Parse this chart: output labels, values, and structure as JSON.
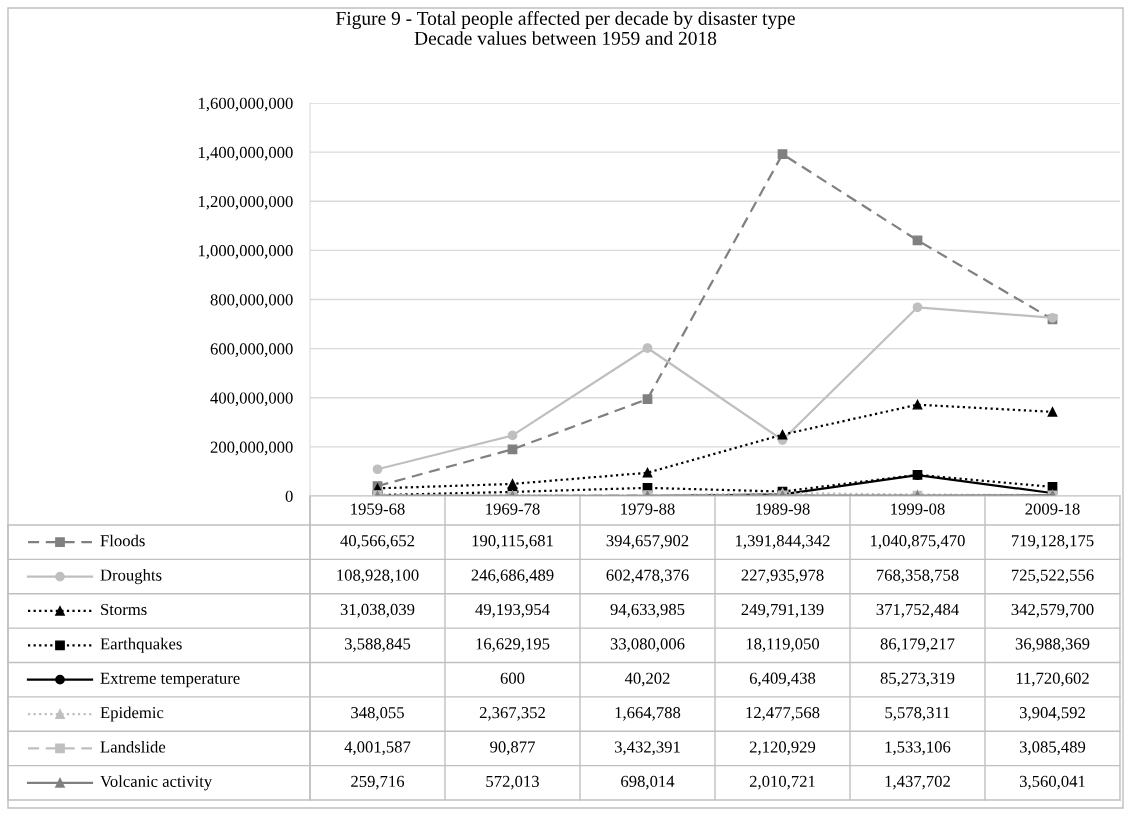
{
  "chart_data": {
    "type": "line",
    "title": "Figure 9 - Total people affected per decade by disaster type",
    "subtitle": "Decade values between 1959 and 2018",
    "categories": [
      "1959-68",
      "1969-78",
      "1979-88",
      "1989-98",
      "1999-08",
      "2009-18"
    ],
    "series": [
      {
        "name": "Floods",
        "color": "#808080",
        "marker": "square",
        "line_style": "dashed",
        "values": [
          40566652,
          190115681,
          394657902,
          1391844342,
          1040875470,
          719128175
        ],
        "value_labels": [
          "40,566,652",
          "190,115,681",
          "394,657,902",
          "1,391,844,342",
          "1,040,875,470",
          "719,128,175"
        ]
      },
      {
        "name": "Droughts",
        "color": "#bfbfbf",
        "marker": "circle",
        "line_style": "solid",
        "values": [
          108928100,
          246686489,
          602478376,
          227935978,
          768358758,
          725522556
        ],
        "value_labels": [
          "108,928,100",
          "246,686,489",
          "602,478,376",
          "227,935,978",
          "768,358,758",
          "725,522,556"
        ]
      },
      {
        "name": "Storms",
        "color": "#000000",
        "marker": "triangle",
        "line_style": "dotted",
        "values": [
          31038039,
          49193954,
          94633985,
          249791139,
          371752484,
          342579700
        ],
        "value_labels": [
          "31,038,039",
          "49,193,954",
          "94,633,985",
          "249,791,139",
          "371,752,484",
          "342,579,700"
        ]
      },
      {
        "name": "Earthquakes",
        "color": "#000000",
        "marker": "square",
        "line_style": "dotted",
        "values": [
          3588845,
          16629195,
          33080006,
          18119050,
          86179217,
          36988369
        ],
        "value_labels": [
          "3,588,845",
          "16,629,195",
          "33,080,006",
          "18,119,050",
          "86,179,217",
          "36,988,369"
        ]
      },
      {
        "name": "Extreme temperature",
        "color": "#000000",
        "marker": "circle",
        "line_style": "solid",
        "values": [
          null,
          600,
          40202,
          6409438,
          85273319,
          11720602
        ],
        "value_labels": [
          null,
          "600",
          "40,202",
          "6,409,438",
          "85,273,319",
          "11,720,602"
        ]
      },
      {
        "name": "Epidemic",
        "color": "#bfbfbf",
        "marker": "triangle",
        "line_style": "dotted",
        "values": [
          348055,
          2367352,
          1664788,
          12477568,
          5578311,
          3904592
        ],
        "value_labels": [
          "348,055",
          "2,367,352",
          "1,664,788",
          "12,477,568",
          "5,578,311",
          "3,904,592"
        ]
      },
      {
        "name": "Landslide",
        "color": "#bfbfbf",
        "marker": "square",
        "line_style": "dashed",
        "values": [
          4001587,
          90877,
          3432391,
          2120929,
          1533106,
          3085489
        ],
        "value_labels": [
          "4,001,587",
          "90,877",
          "3,432,391",
          "2,120,929",
          "1,533,106",
          "3,085,489"
        ]
      },
      {
        "name": "Volcanic activity",
        "color": "#808080",
        "marker": "triangle",
        "line_style": "solid",
        "values": [
          259716,
          572013,
          698014,
          2010721,
          1437702,
          3560041
        ],
        "value_labels": [
          "259,716",
          "572,013",
          "698,014",
          "2,010,721",
          "1,437,702",
          "3,560,041"
        ]
      }
    ],
    "ylim": [
      0,
      1600000000
    ],
    "yticks": [
      {
        "value": 0,
        "label": "0"
      },
      {
        "value": 200000000,
        "label": "200,000,000"
      },
      {
        "value": 400000000,
        "label": "400,000,000"
      },
      {
        "value": 600000000,
        "label": "600,000,000"
      },
      {
        "value": 800000000,
        "label": "800,000,000"
      },
      {
        "value": 1000000000,
        "label": "1,000,000,000"
      },
      {
        "value": 1200000000,
        "label": "1,200,000,000"
      },
      {
        "value": 1400000000,
        "label": "1,400,000,000"
      },
      {
        "value": 1600000000,
        "label": "1,600,000,000"
      }
    ],
    "grid": "y",
    "legend": "bottom"
  }
}
